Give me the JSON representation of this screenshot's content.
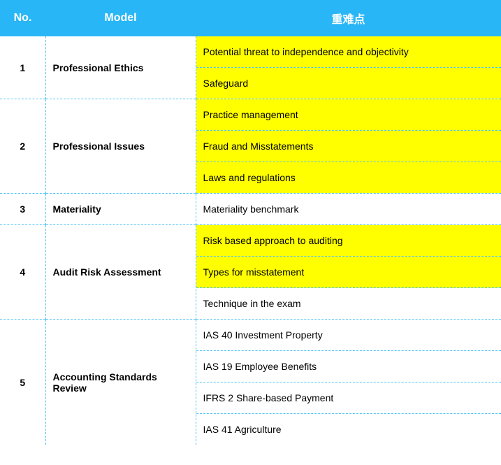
{
  "header": {
    "no": "No.",
    "model": "Model",
    "points": "重难点"
  },
  "rows": [
    {
      "no": "1",
      "model": "Professional Ethics",
      "points": [
        {
          "text": "Potential threat to independence and objectivity",
          "highlight": true
        },
        {
          "text": "Safeguard",
          "highlight": true
        }
      ]
    },
    {
      "no": "2",
      "model": "Professional Issues",
      "points": [
        {
          "text": "Practice management",
          "highlight": true
        },
        {
          "text": "Fraud and Misstatements",
          "highlight": true
        },
        {
          "text": "Laws and regulations",
          "highlight": true
        }
      ]
    },
    {
      "no": "3",
      "model": "Materiality",
      "points": [
        {
          "text": "Materiality benchmark",
          "highlight": false
        }
      ]
    },
    {
      "no": "4",
      "model": "Audit Risk Assessment",
      "points": [
        {
          "text": "Risk based approach to auditing",
          "highlight": true
        },
        {
          "text": "Types for misstatement",
          "highlight": true
        },
        {
          "text": "Technique in the exam",
          "highlight": false
        }
      ]
    },
    {
      "no": "5",
      "model": "Accounting Standards Review",
      "points": [
        {
          "text": "IAS 40 Investment Property",
          "highlight": false
        },
        {
          "text": "IAS 19 Employee Benefits",
          "highlight": false
        },
        {
          "text": "IFRS 2 Share-based Payment",
          "highlight": false
        },
        {
          "text": "IAS 41 Agriculture",
          "highlight": false
        }
      ]
    }
  ],
  "colors": {
    "header_bg": "#29b6f6",
    "header_text": "#ffffff",
    "border": "#4fc3f7",
    "highlight": "#ffff00",
    "text": "#000000"
  }
}
